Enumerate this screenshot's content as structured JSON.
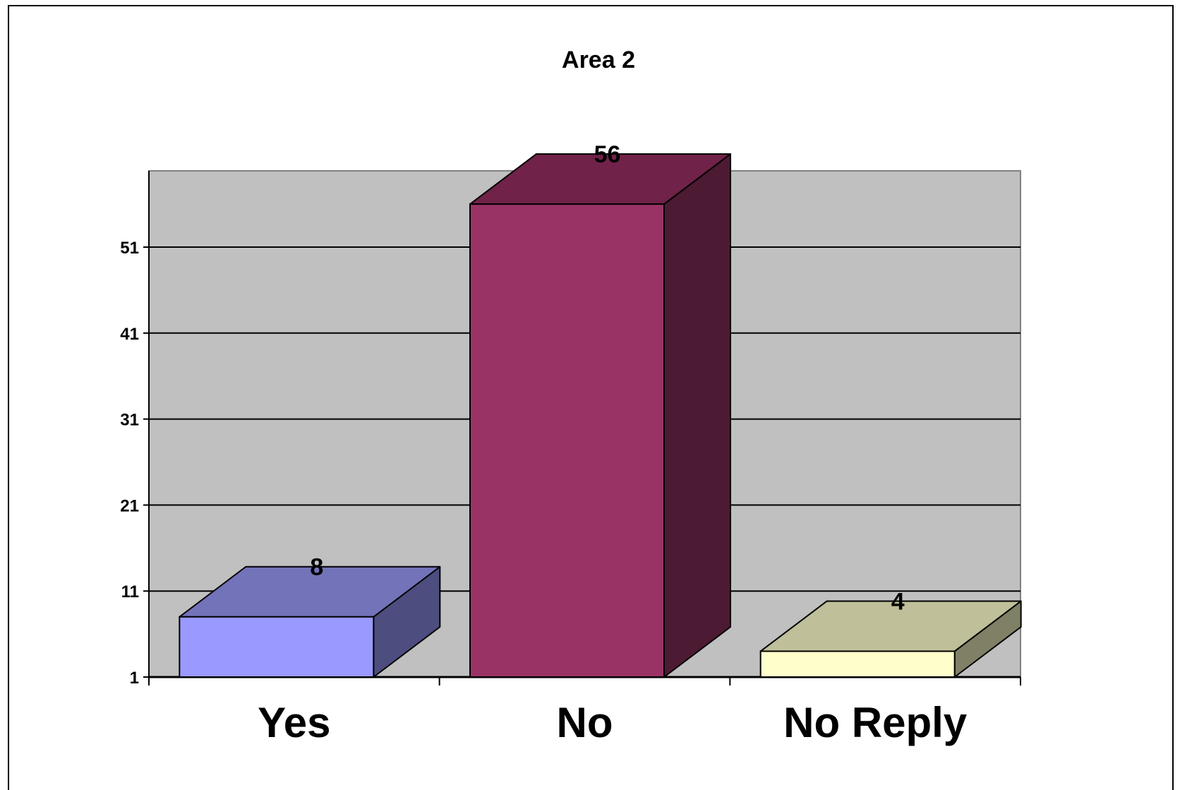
{
  "chart_data": {
    "type": "bar",
    "title": "Area 2",
    "xlabel": "",
    "ylabel": "",
    "categories": [
      "Yes",
      "No",
      "No Reply"
    ],
    "values": [
      8,
      56,
      4
    ],
    "data_labels": [
      "8",
      "56",
      "4"
    ],
    "y_ticks": [
      "1",
      "11",
      "21",
      "31",
      "41",
      "51"
    ],
    "y_tick_values": [
      1,
      11,
      21,
      31,
      41,
      51
    ],
    "ylim": [
      1,
      60
    ],
    "grid": true,
    "legend": "none",
    "style": "3d-column",
    "colors": {
      "plot_background": "#c0c0c0",
      "bars": [
        {
          "front": "#9999ff",
          "top": "#7373ba",
          "side": "#4d4d80"
        },
        {
          "front": "#993366",
          "top": "#702249",
          "side": "#4c1a32"
        },
        {
          "front": "#ffffcc",
          "top": "#bfbf99",
          "side": "#808066"
        }
      ]
    }
  }
}
